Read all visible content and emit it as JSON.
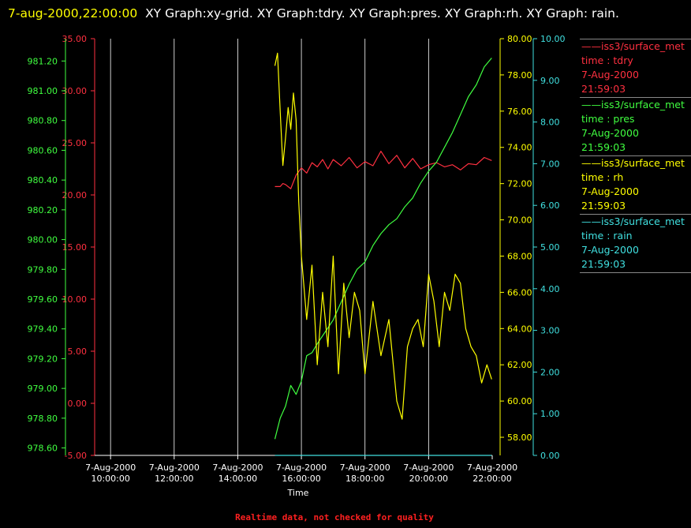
{
  "header": {
    "timestamp": "7-aug-2000,22:00:00",
    "graphs": "XY Graph:xy-grid.  XY Graph:tdry.  XY Graph:pres.  XY Graph:rh.  XY Graph: rain."
  },
  "footer": "Realtime data, not checked for quality",
  "legend": [
    {
      "name": "iss3/surface_met",
      "field": "time : tdry",
      "date": "7-Aug-2000",
      "time": "21:59:03",
      "color": "#ff3040"
    },
    {
      "name": "iss3/surface_met",
      "field": "time : pres",
      "date": "7-Aug-2000",
      "time": "21:59:03",
      "color": "#40ff40"
    },
    {
      "name": "iss3/surface_met",
      "field": "time : rh",
      "date": "7-Aug-2000",
      "time": "21:59:03",
      "color": "#ffff00"
    },
    {
      "name": "iss3/surface_met",
      "field": "time : rain",
      "date": "7-Aug-2000",
      "time": "21:59:03",
      "color": "#40e0e0"
    }
  ],
  "chart_data": {
    "type": "line",
    "title": "",
    "xlabel": "Time",
    "x_ticks": [
      {
        "date": "7-Aug-2000",
        "time": "10:00:00",
        "h": 10
      },
      {
        "date": "7-Aug-2000",
        "time": "12:00:00",
        "h": 12
      },
      {
        "date": "7-Aug-2000",
        "time": "14:00:00",
        "h": 14
      },
      {
        "date": "7-Aug-2000",
        "time": "16:00:00",
        "h": 16
      },
      {
        "date": "7-Aug-2000",
        "time": "18:00:00",
        "h": 18
      },
      {
        "date": "7-Aug-2000",
        "time": "20:00:00",
        "h": 20
      },
      {
        "date": "7-Aug-2000",
        "time": "22:00:00",
        "h": 22
      }
    ],
    "xlim": [
      "7-Aug-2000 09:30:00",
      "7-Aug-2000 22:00:00"
    ],
    "xlim_hours": [
      9.5,
      22
    ],
    "grid": "vertical",
    "axes": [
      {
        "key": "tdry",
        "side": "left",
        "color": "#ff3040",
        "ylim": [
          -5,
          35
        ],
        "ticks": [
          -5,
          0,
          5,
          10,
          15,
          20,
          25,
          30,
          35
        ],
        "decimals": 2
      },
      {
        "key": "pres",
        "side": "left",
        "color": "#40ff40",
        "ylim": [
          978.55,
          981.35
        ],
        "ticks": [
          978.6,
          978.8,
          979.0,
          979.2,
          979.4,
          979.6,
          979.8,
          980.0,
          980.2,
          980.4,
          980.6,
          980.8,
          981.0,
          981.2
        ],
        "decimals": 2
      },
      {
        "key": "rh",
        "side": "right",
        "color": "#ffff00",
        "ylim": [
          57,
          80
        ],
        "ticks": [
          58,
          60,
          62,
          64,
          66,
          68,
          70,
          72,
          74,
          76,
          78,
          80
        ],
        "decimals": 2
      },
      {
        "key": "rain",
        "side": "right",
        "color": "#40e0e0",
        "ylim": [
          0,
          10
        ],
        "ticks": [
          0,
          1,
          2,
          3,
          4,
          5,
          6,
          7,
          8,
          9,
          10
        ],
        "decimals": 2
      }
    ],
    "series": [
      {
        "key": "tdry",
        "color": "#ff3040",
        "x": [
          "7-Aug-2000 15:10:00",
          "7-Aug-2000 15:20:00",
          "7-Aug-2000 15:25:00",
          "7-Aug-2000 15:30:00",
          "7-Aug-2000 15:40:00",
          "7-Aug-2000 15:50:00",
          "7-Aug-2000 16:00:00",
          "7-Aug-2000 16:10:00",
          "7-Aug-2000 16:20:00",
          "7-Aug-2000 16:30:00",
          "7-Aug-2000 16:40:00",
          "7-Aug-2000 16:50:00",
          "7-Aug-2000 17:00:00",
          "7-Aug-2000 17:15:00",
          "7-Aug-2000 17:30:00",
          "7-Aug-2000 17:45:00",
          "7-Aug-2000 18:00:00",
          "7-Aug-2000 18:15:00",
          "7-Aug-2000 18:30:00",
          "7-Aug-2000 18:45:00",
          "7-Aug-2000 19:00:00",
          "7-Aug-2000 19:15:00",
          "7-Aug-2000 19:30:00",
          "7-Aug-2000 19:45:00",
          "7-Aug-2000 20:00:00",
          "7-Aug-2000 20:15:00",
          "7-Aug-2000 20:30:00",
          "7-Aug-2000 20:45:00",
          "7-Aug-2000 21:00:00",
          "7-Aug-2000 21:15:00",
          "7-Aug-2000 21:30:00",
          "7-Aug-2000 21:45:00",
          "7-Aug-2000 21:59:00"
        ],
        "values": [
          20.8,
          20.8,
          21.1,
          21.0,
          20.6,
          21.9,
          22.6,
          22.1,
          23.1,
          22.7,
          23.4,
          22.5,
          23.4,
          22.8,
          23.6,
          22.6,
          23.2,
          22.8,
          24.2,
          23.0,
          23.8,
          22.6,
          23.5,
          22.5,
          22.9,
          23.1,
          22.7,
          22.9,
          22.4,
          23.0,
          22.9,
          23.6,
          23.3
        ]
      },
      {
        "key": "pres",
        "color": "#40ff40",
        "x": [
          "7-Aug-2000 15:10:00",
          "7-Aug-2000 15:20:00",
          "7-Aug-2000 15:30:00",
          "7-Aug-2000 15:40:00",
          "7-Aug-2000 15:50:00",
          "7-Aug-2000 16:00:00",
          "7-Aug-2000 16:10:00",
          "7-Aug-2000 16:20:00",
          "7-Aug-2000 16:30:00",
          "7-Aug-2000 16:45:00",
          "7-Aug-2000 17:00:00",
          "7-Aug-2000 17:15:00",
          "7-Aug-2000 17:30:00",
          "7-Aug-2000 17:45:00",
          "7-Aug-2000 18:00:00",
          "7-Aug-2000 18:15:00",
          "7-Aug-2000 18:30:00",
          "7-Aug-2000 18:45:00",
          "7-Aug-2000 19:00:00",
          "7-Aug-2000 19:15:00",
          "7-Aug-2000 19:30:00",
          "7-Aug-2000 19:45:00",
          "7-Aug-2000 20:00:00",
          "7-Aug-2000 20:15:00",
          "7-Aug-2000 20:30:00",
          "7-Aug-2000 20:45:00",
          "7-Aug-2000 21:00:00",
          "7-Aug-2000 21:15:00",
          "7-Aug-2000 21:30:00",
          "7-Aug-2000 21:45:00",
          "7-Aug-2000 21:59:00"
        ],
        "values": [
          978.66,
          978.8,
          978.88,
          979.02,
          978.96,
          979.05,
          979.22,
          979.24,
          979.3,
          979.38,
          979.46,
          979.58,
          979.7,
          979.8,
          979.85,
          979.96,
          980.04,
          980.1,
          980.14,
          980.22,
          980.28,
          980.38,
          980.46,
          980.52,
          980.62,
          980.72,
          980.84,
          980.96,
          981.04,
          981.16,
          981.22
        ]
      },
      {
        "key": "rh",
        "color": "#ffff00",
        "x": [
          "7-Aug-2000 15:10:00",
          "7-Aug-2000 15:15:00",
          "7-Aug-2000 15:20:00",
          "7-Aug-2000 15:25:00",
          "7-Aug-2000 15:30:00",
          "7-Aug-2000 15:35:00",
          "7-Aug-2000 15:40:00",
          "7-Aug-2000 15:45:00",
          "7-Aug-2000 15:50:00",
          "7-Aug-2000 15:55:00",
          "7-Aug-2000 16:00:00",
          "7-Aug-2000 16:10:00",
          "7-Aug-2000 16:20:00",
          "7-Aug-2000 16:30:00",
          "7-Aug-2000 16:40:00",
          "7-Aug-2000 16:50:00",
          "7-Aug-2000 17:00:00",
          "7-Aug-2000 17:10:00",
          "7-Aug-2000 17:20:00",
          "7-Aug-2000 17:30:00",
          "7-Aug-2000 17:40:00",
          "7-Aug-2000 17:50:00",
          "7-Aug-2000 18:00:00",
          "7-Aug-2000 18:15:00",
          "7-Aug-2000 18:30:00",
          "7-Aug-2000 18:45:00",
          "7-Aug-2000 19:00:00",
          "7-Aug-2000 19:10:00",
          "7-Aug-2000 19:20:00",
          "7-Aug-2000 19:30:00",
          "7-Aug-2000 19:40:00",
          "7-Aug-2000 19:50:00",
          "7-Aug-2000 20:00:00",
          "7-Aug-2000 20:10:00",
          "7-Aug-2000 20:20:00",
          "7-Aug-2000 20:30:00",
          "7-Aug-2000 20:40:00",
          "7-Aug-2000 20:50:00",
          "7-Aug-2000 21:00:00",
          "7-Aug-2000 21:10:00",
          "7-Aug-2000 21:20:00",
          "7-Aug-2000 21:30:00",
          "7-Aug-2000 21:40:00",
          "7-Aug-2000 21:50:00",
          "7-Aug-2000 21:59:00"
        ],
        "values": [
          78.5,
          79.2,
          76.0,
          73.0,
          74.5,
          76.2,
          75.0,
          77.0,
          75.5,
          71.0,
          68.0,
          64.5,
          67.5,
          62.0,
          66.0,
          63.0,
          68.0,
          61.5,
          66.5,
          63.5,
          66.0,
          65.0,
          61.5,
          65.5,
          62.5,
          64.5,
          60.0,
          59.0,
          63.0,
          64.0,
          64.5,
          63.0,
          67.0,
          65.5,
          63.0,
          66.0,
          65.0,
          67.0,
          66.5,
          64.0,
          63.0,
          62.5,
          61.0,
          62.0,
          61.2
        ]
      },
      {
        "key": "rain",
        "color": "#40e0e0",
        "x": [
          "7-Aug-2000 15:10:00",
          "7-Aug-2000 21:59:00"
        ],
        "values": [
          0.0,
          0.0
        ]
      }
    ]
  }
}
